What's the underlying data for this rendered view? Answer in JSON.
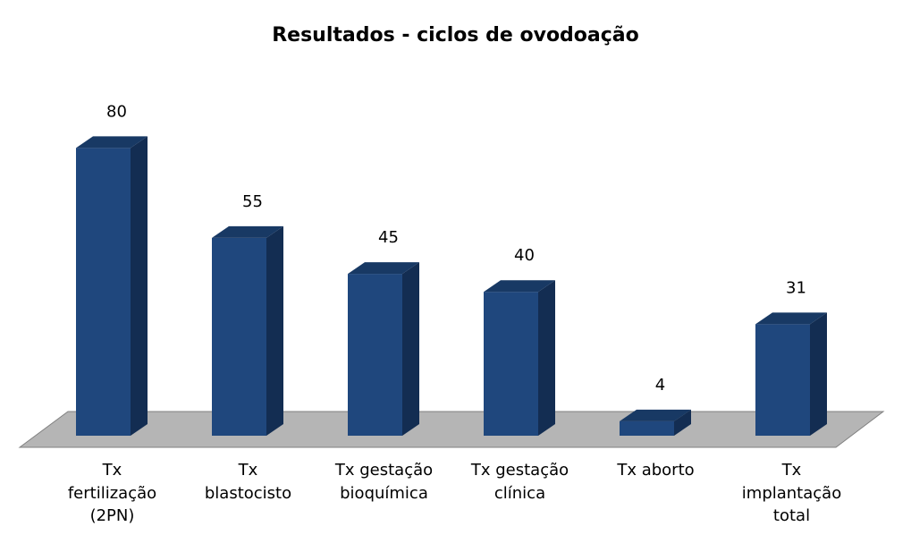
{
  "chart_data": {
    "type": "bar",
    "title": "Resultados - ciclos de ovodoação",
    "categories": [
      "Tx\nfertilização\n(2PN)",
      "Tx\nblastocisto",
      "Tx gestação\nbioquímica",
      "Tx gestação\nclínica",
      "Tx aborto",
      "Tx\nimplantação\ntotal"
    ],
    "values": [
      80,
      55,
      45,
      40,
      4,
      31
    ],
    "ylim": [
      0,
      80
    ],
    "grid": false,
    "legend": "none",
    "style": "3d-column",
    "colors": {
      "bar_front": "#1f477d",
      "bar_side": "#132d52",
      "bar_top": "#183964",
      "floor": "#b5b5b5",
      "floor_edge": "#808080"
    }
  }
}
